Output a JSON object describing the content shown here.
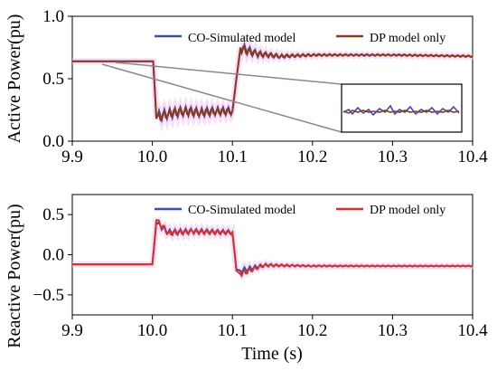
{
  "chart_data": [
    {
      "type": "line",
      "ylabel": "Active Power(pu)",
      "xlabel": "",
      "xlim": [
        9.9,
        10.4
      ],
      "ylim": [
        0.0,
        1.0
      ],
      "x_ticks": [
        "9.9",
        "10.0",
        "10.1",
        "10.2",
        "10.3",
        "10.4"
      ],
      "y_ticks": [
        "0.0",
        "0.5",
        "1.0"
      ],
      "legend": [
        "CO-Simulated model",
        "DP model only"
      ],
      "legend_position": "top-right",
      "inset": "zoom of steady-state segment near x=9.95 shown at right-middle",
      "series": [
        {
          "name": "CO-Simulated model",
          "color": "#3a4fa8",
          "x": [
            9.9,
            9.99,
            10.001,
            10.005,
            10.02,
            10.04,
            10.06,
            10.08,
            10.1,
            10.105,
            10.11,
            10.13,
            10.16,
            10.2,
            10.3,
            10.4
          ],
          "y": [
            0.64,
            0.64,
            0.64,
            0.2,
            0.22,
            0.24,
            0.23,
            0.24,
            0.24,
            0.5,
            0.75,
            0.7,
            0.68,
            0.69,
            0.69,
            0.68
          ]
        },
        {
          "name": "DP model only",
          "color": "#8a3a1f",
          "x": [
            9.9,
            9.99,
            10.001,
            10.005,
            10.02,
            10.04,
            10.06,
            10.08,
            10.1,
            10.105,
            10.11,
            10.13,
            10.16,
            10.2,
            10.3,
            10.4
          ],
          "y": [
            0.64,
            0.64,
            0.64,
            0.18,
            0.22,
            0.24,
            0.23,
            0.24,
            0.24,
            0.5,
            0.74,
            0.7,
            0.68,
            0.69,
            0.69,
            0.68
          ]
        }
      ]
    },
    {
      "type": "line",
      "ylabel": "Reactive Power(pu)",
      "xlabel": "Time (s)",
      "xlim": [
        9.9,
        10.4
      ],
      "ylim": [
        -0.75,
        0.75
      ],
      "x_ticks": [
        "9.9",
        "10.0",
        "10.1",
        "10.2",
        "10.3",
        "10.4"
      ],
      "y_ticks": [
        "0.5",
        "0.0",
        "−0.5"
      ],
      "legend": [
        "CO-Simulated model",
        "DP model only"
      ],
      "legend_position": "top-right",
      "series": [
        {
          "name": "CO-Simulated model",
          "color": "#3a4fa8",
          "x": [
            9.9,
            10.0,
            10.005,
            10.02,
            10.05,
            10.1,
            10.105,
            10.11,
            10.14,
            10.2,
            10.3,
            10.4
          ],
          "y": [
            -0.12,
            -0.12,
            0.4,
            0.28,
            0.29,
            0.28,
            -0.18,
            -0.2,
            -0.13,
            -0.14,
            -0.14,
            -0.14
          ]
        },
        {
          "name": "DP model only",
          "color": "#d0342c",
          "x": [
            9.9,
            10.0,
            10.005,
            10.02,
            10.05,
            10.1,
            10.105,
            10.11,
            10.14,
            10.2,
            10.3,
            10.4
          ],
          "y": [
            -0.12,
            -0.12,
            0.43,
            0.27,
            0.29,
            0.28,
            -0.2,
            -0.24,
            -0.13,
            -0.14,
            -0.14,
            -0.14
          ]
        }
      ]
    }
  ]
}
